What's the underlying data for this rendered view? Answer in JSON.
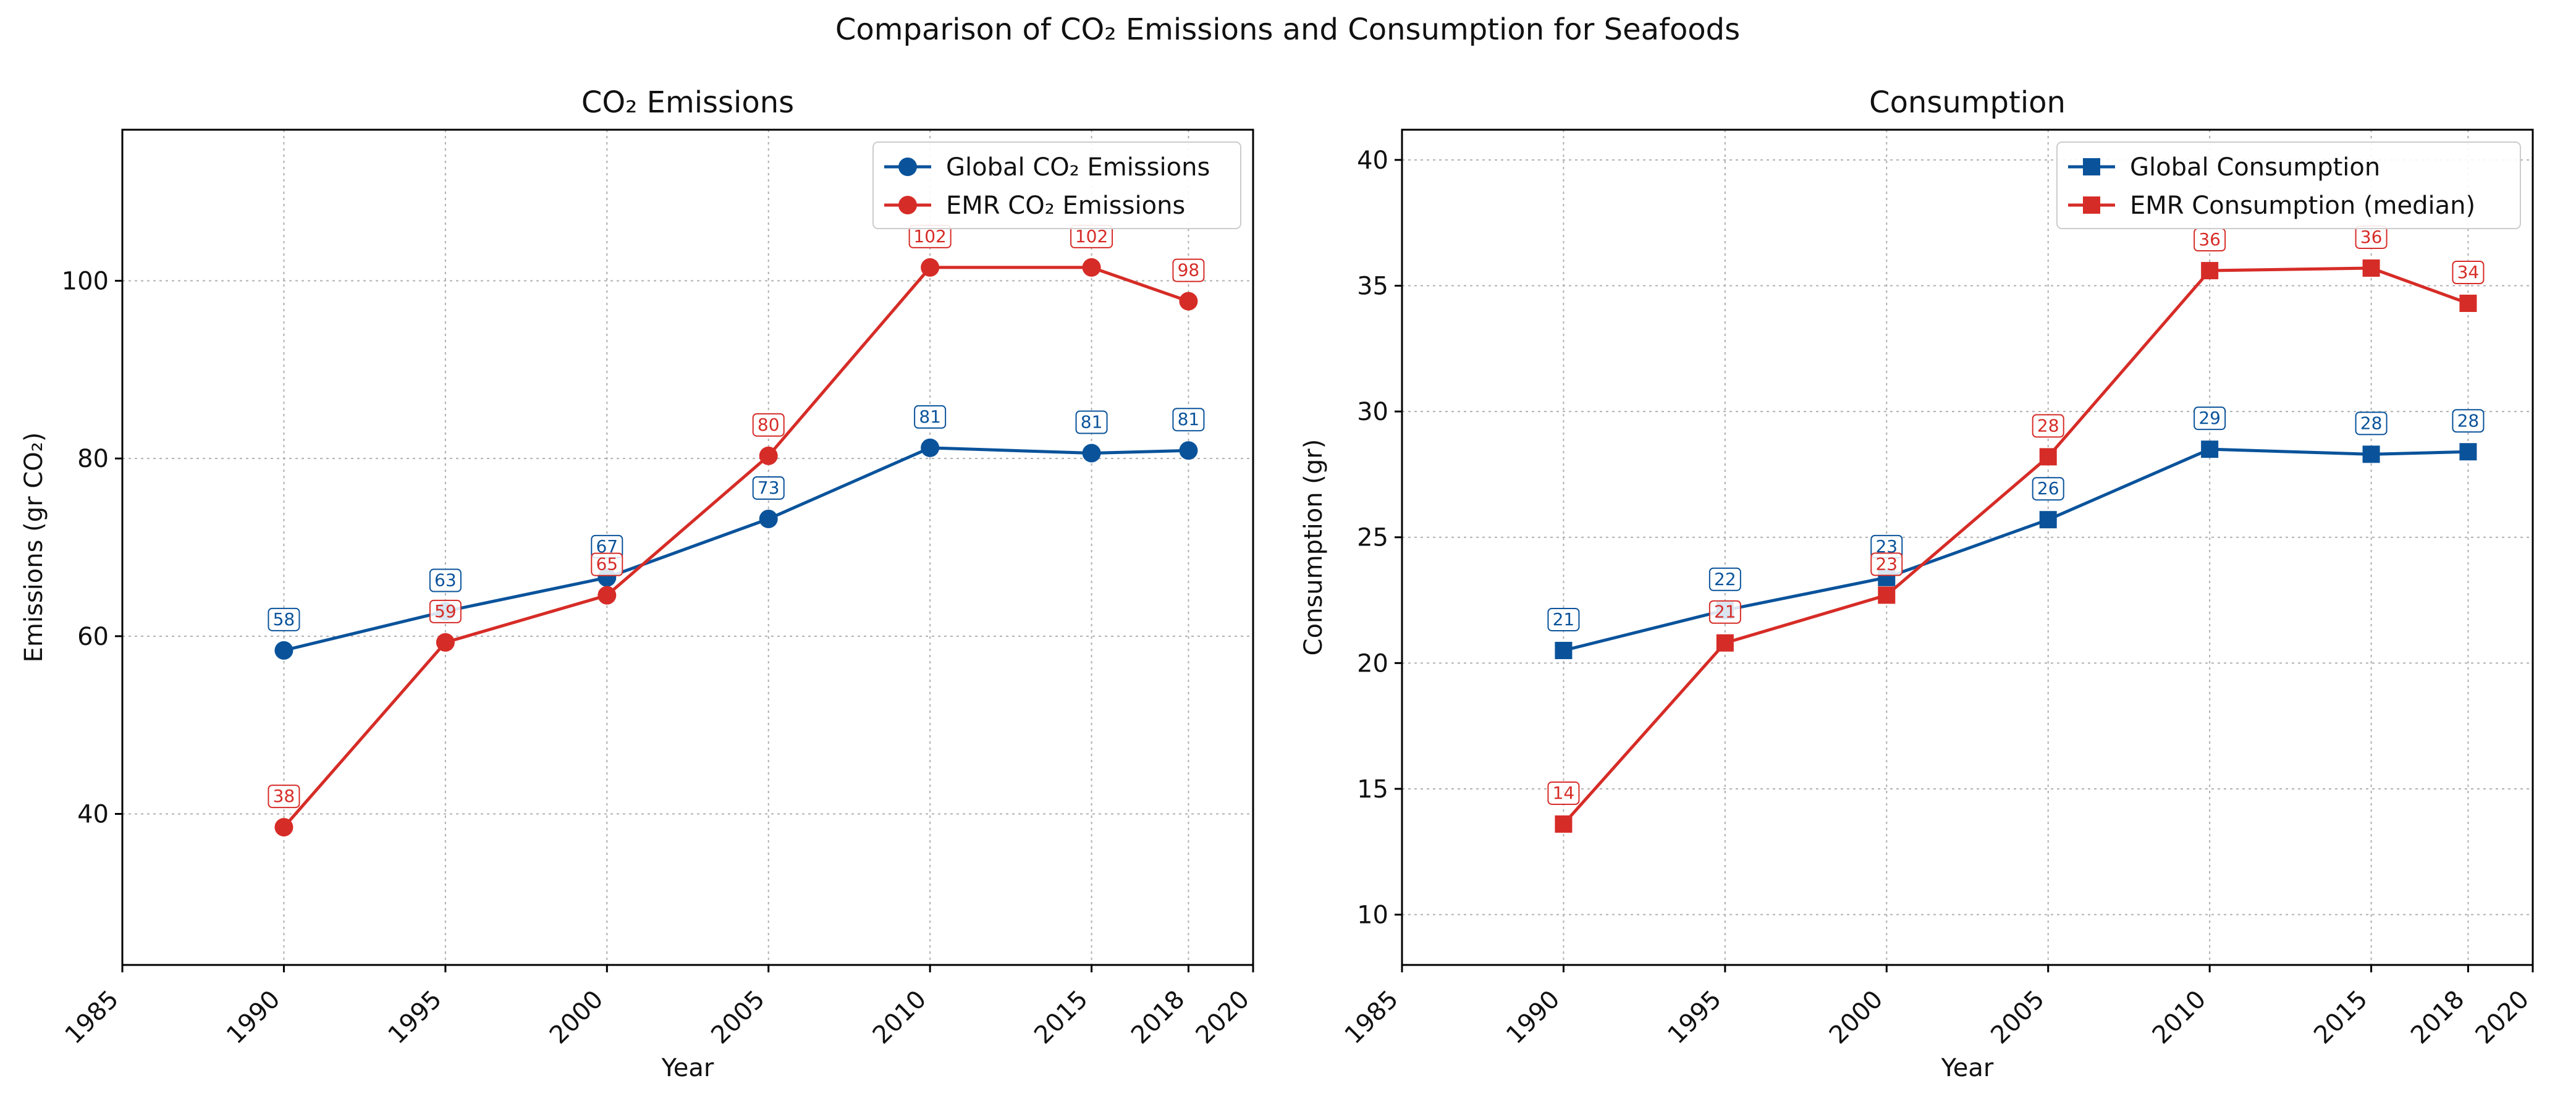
{
  "figure": {
    "suptitle": "Comparison of CO₂ Emissions and Consumption for Seafoods"
  },
  "colors": {
    "global": "#0a539b",
    "emr": "#d62c27",
    "grid": "#b0b0b0"
  },
  "chart_data": [
    {
      "type": "line",
      "title": "CO₂ Emissions",
      "xlabel": "Year",
      "ylabel": "Emissions (gr CO₂)",
      "xlim": [
        1985,
        2020
      ],
      "ylim": [
        23,
        117
      ],
      "xticks": [
        1985,
        1990,
        1995,
        2000,
        2005,
        2010,
        2015,
        2018,
        2020
      ],
      "yticks": [
        40,
        60,
        80,
        100
      ],
      "grid": true,
      "legend_position": "upper right",
      "x": [
        1990,
        1995,
        2000,
        2005,
        2010,
        2015,
        2018
      ],
      "series": [
        {
          "name": "Global CO₂ Emissions",
          "color": "#0a539b",
          "marker": "circle",
          "values": [
            58.4,
            62.8,
            66.6,
            73.2,
            81.2,
            80.6,
            80.9
          ],
          "labels": [
            "58",
            "63",
            "67",
            "73",
            "81",
            "81",
            "81"
          ]
        },
        {
          "name": "EMR CO₂ Emissions",
          "color": "#d62c27",
          "marker": "circle",
          "values": [
            38.5,
            59.3,
            64.6,
            80.3,
            101.5,
            101.5,
            97.7
          ],
          "labels": [
            "38",
            "59",
            "65",
            "80",
            "102",
            "102",
            "98"
          ]
        }
      ]
    },
    {
      "type": "line",
      "title": "Consumption",
      "xlabel": "Year",
      "ylabel": "Consumption (gr)",
      "xlim": [
        1985,
        2020
      ],
      "ylim": [
        8,
        41.2
      ],
      "xticks": [
        1985,
        1990,
        1995,
        2000,
        2005,
        2010,
        2015,
        2018,
        2020
      ],
      "yticks": [
        10,
        15,
        20,
        25,
        30,
        35,
        40
      ],
      "grid": true,
      "legend_position": "upper right",
      "x": [
        1990,
        1995,
        2000,
        2005,
        2010,
        2015,
        2018
      ],
      "series": [
        {
          "name": "Global Consumption",
          "color": "#0a539b",
          "marker": "square",
          "values": [
            20.5,
            22.1,
            23.4,
            25.7,
            28.5,
            28.3,
            28.4
          ],
          "labels": [
            "21",
            "22",
            "23",
            "26",
            "29",
            "28",
            "28"
          ]
        },
        {
          "name": "EMR Consumption (median)",
          "color": "#d62c27",
          "marker": "square",
          "values": [
            13.6,
            20.8,
            22.7,
            28.2,
            35.6,
            35.7,
            34.3
          ],
          "labels": [
            "14",
            "21",
            "23",
            "28",
            "36",
            "36",
            "34"
          ]
        }
      ]
    }
  ]
}
